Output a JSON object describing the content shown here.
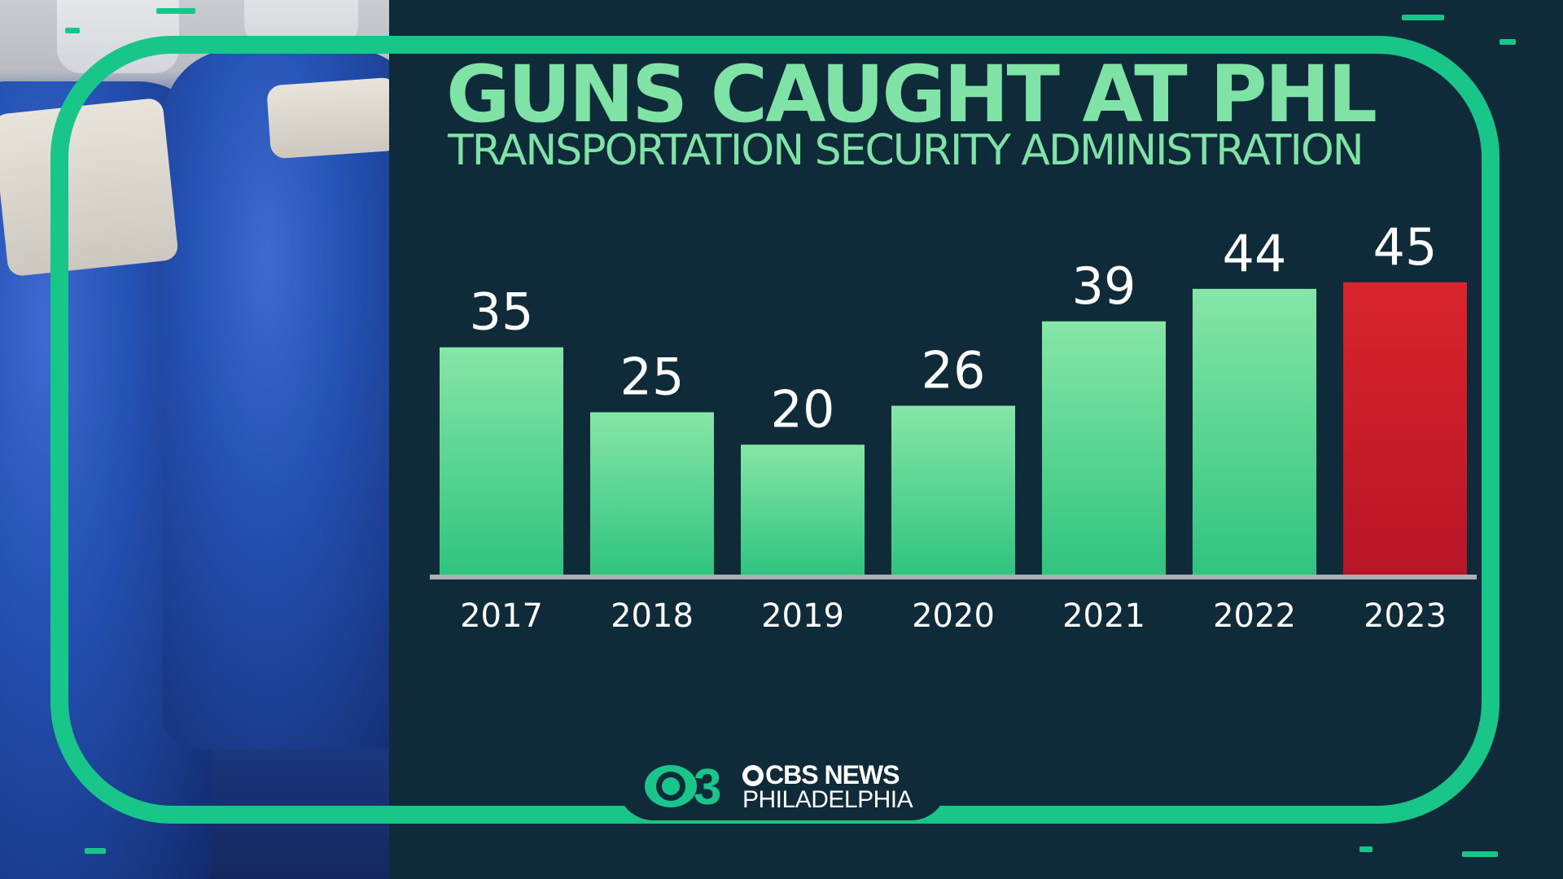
{
  "title": "GUNS CAUGHT AT PHL",
  "subtitle": "TRANSPORTATION SECURITY ADMINISTRATION",
  "logo": {
    "line1": "CBS NEWS",
    "line2": "PHILADELPHIA",
    "number": "3"
  },
  "colors": {
    "accent": "#19c68a",
    "bar": "#4fd491",
    "bar_highlight": "#cc1f2b",
    "background": "#0f2a38",
    "title": "#7fe3a6"
  },
  "chart_data": {
    "type": "bar",
    "title": "GUNS CAUGHT AT PHL",
    "subtitle": "TRANSPORTATION SECURITY ADMINISTRATION",
    "categories": [
      "2017",
      "2018",
      "2019",
      "2020",
      "2021",
      "2022",
      "2023"
    ],
    "values": [
      35,
      25,
      20,
      26,
      39,
      44,
      45
    ],
    "highlight": "2023",
    "grid": false,
    "legend": "none"
  }
}
